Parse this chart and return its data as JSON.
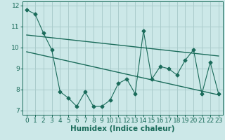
{
  "title": "",
  "xlabel": "Humidex (Indice chaleur)",
  "x": [
    0,
    1,
    2,
    3,
    4,
    5,
    6,
    7,
    8,
    9,
    10,
    11,
    12,
    13,
    14,
    15,
    16,
    17,
    18,
    19,
    20,
    21,
    22,
    23
  ],
  "y_main": [
    11.8,
    11.6,
    10.7,
    9.9,
    7.9,
    7.6,
    7.2,
    7.9,
    7.2,
    7.2,
    7.5,
    8.3,
    8.5,
    7.8,
    10.8,
    8.5,
    9.1,
    9.0,
    8.7,
    9.4,
    9.9,
    7.8,
    9.3,
    7.8
  ],
  "trend1_x": [
    0,
    23
  ],
  "trend1_y": [
    10.6,
    9.6
  ],
  "trend2_x": [
    0,
    23
  ],
  "trend2_y": [
    9.8,
    7.75
  ],
  "ylim": [
    6.8,
    12.2
  ],
  "xlim": [
    -0.5,
    23.5
  ],
  "yticks": [
    7,
    8,
    9,
    10,
    11,
    12
  ],
  "xticks": [
    0,
    1,
    2,
    3,
    4,
    5,
    6,
    7,
    8,
    9,
    10,
    11,
    12,
    13,
    14,
    15,
    16,
    17,
    18,
    19,
    20,
    21,
    22,
    23
  ],
  "bg_color": "#cce8e8",
  "line_color": "#1a6b5a",
  "grid_color": "#aacccc",
  "tick_fontsize": 6.5,
  "label_fontsize": 7.5
}
